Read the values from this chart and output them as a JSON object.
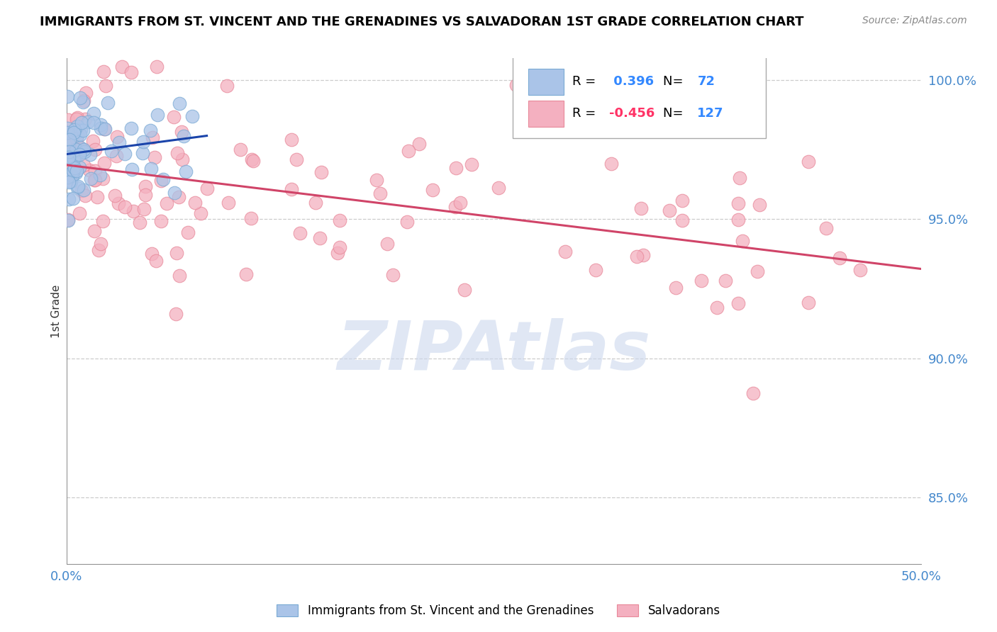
{
  "title": "IMMIGRANTS FROM ST. VINCENT AND THE GRENADINES VS SALVADORAN 1ST GRADE CORRELATION CHART",
  "source": "Source: ZipAtlas.com",
  "ylabel": "1st Grade",
  "xlim": [
    0.0,
    0.5
  ],
  "ylim": [
    0.826,
    1.008
  ],
  "blue_R": 0.396,
  "blue_N": 72,
  "pink_R": -0.456,
  "pink_N": 127,
  "blue_color": "#aac4e8",
  "pink_color": "#f4b0c0",
  "blue_edge_color": "#7aaad4",
  "pink_edge_color": "#e8899a",
  "blue_line_color": "#1a44aa",
  "pink_line_color": "#d04468",
  "watermark": "ZIPAtlas",
  "watermark_color": "#ccd8ee",
  "legend_label_blue": "Immigrants from St. Vincent and the Grenadines",
  "legend_label_pink": "Salvadorans",
  "yticks": [
    0.85,
    0.9,
    0.95,
    1.0
  ],
  "ytick_labels": [
    "85.0%",
    "90.0%",
    "95.0%",
    "100.0%"
  ],
  "grid_color": "#cccccc",
  "R_color_blue": "#3388ff",
  "R_color_pink": "#ff3366",
  "N_color": "#3388ff"
}
